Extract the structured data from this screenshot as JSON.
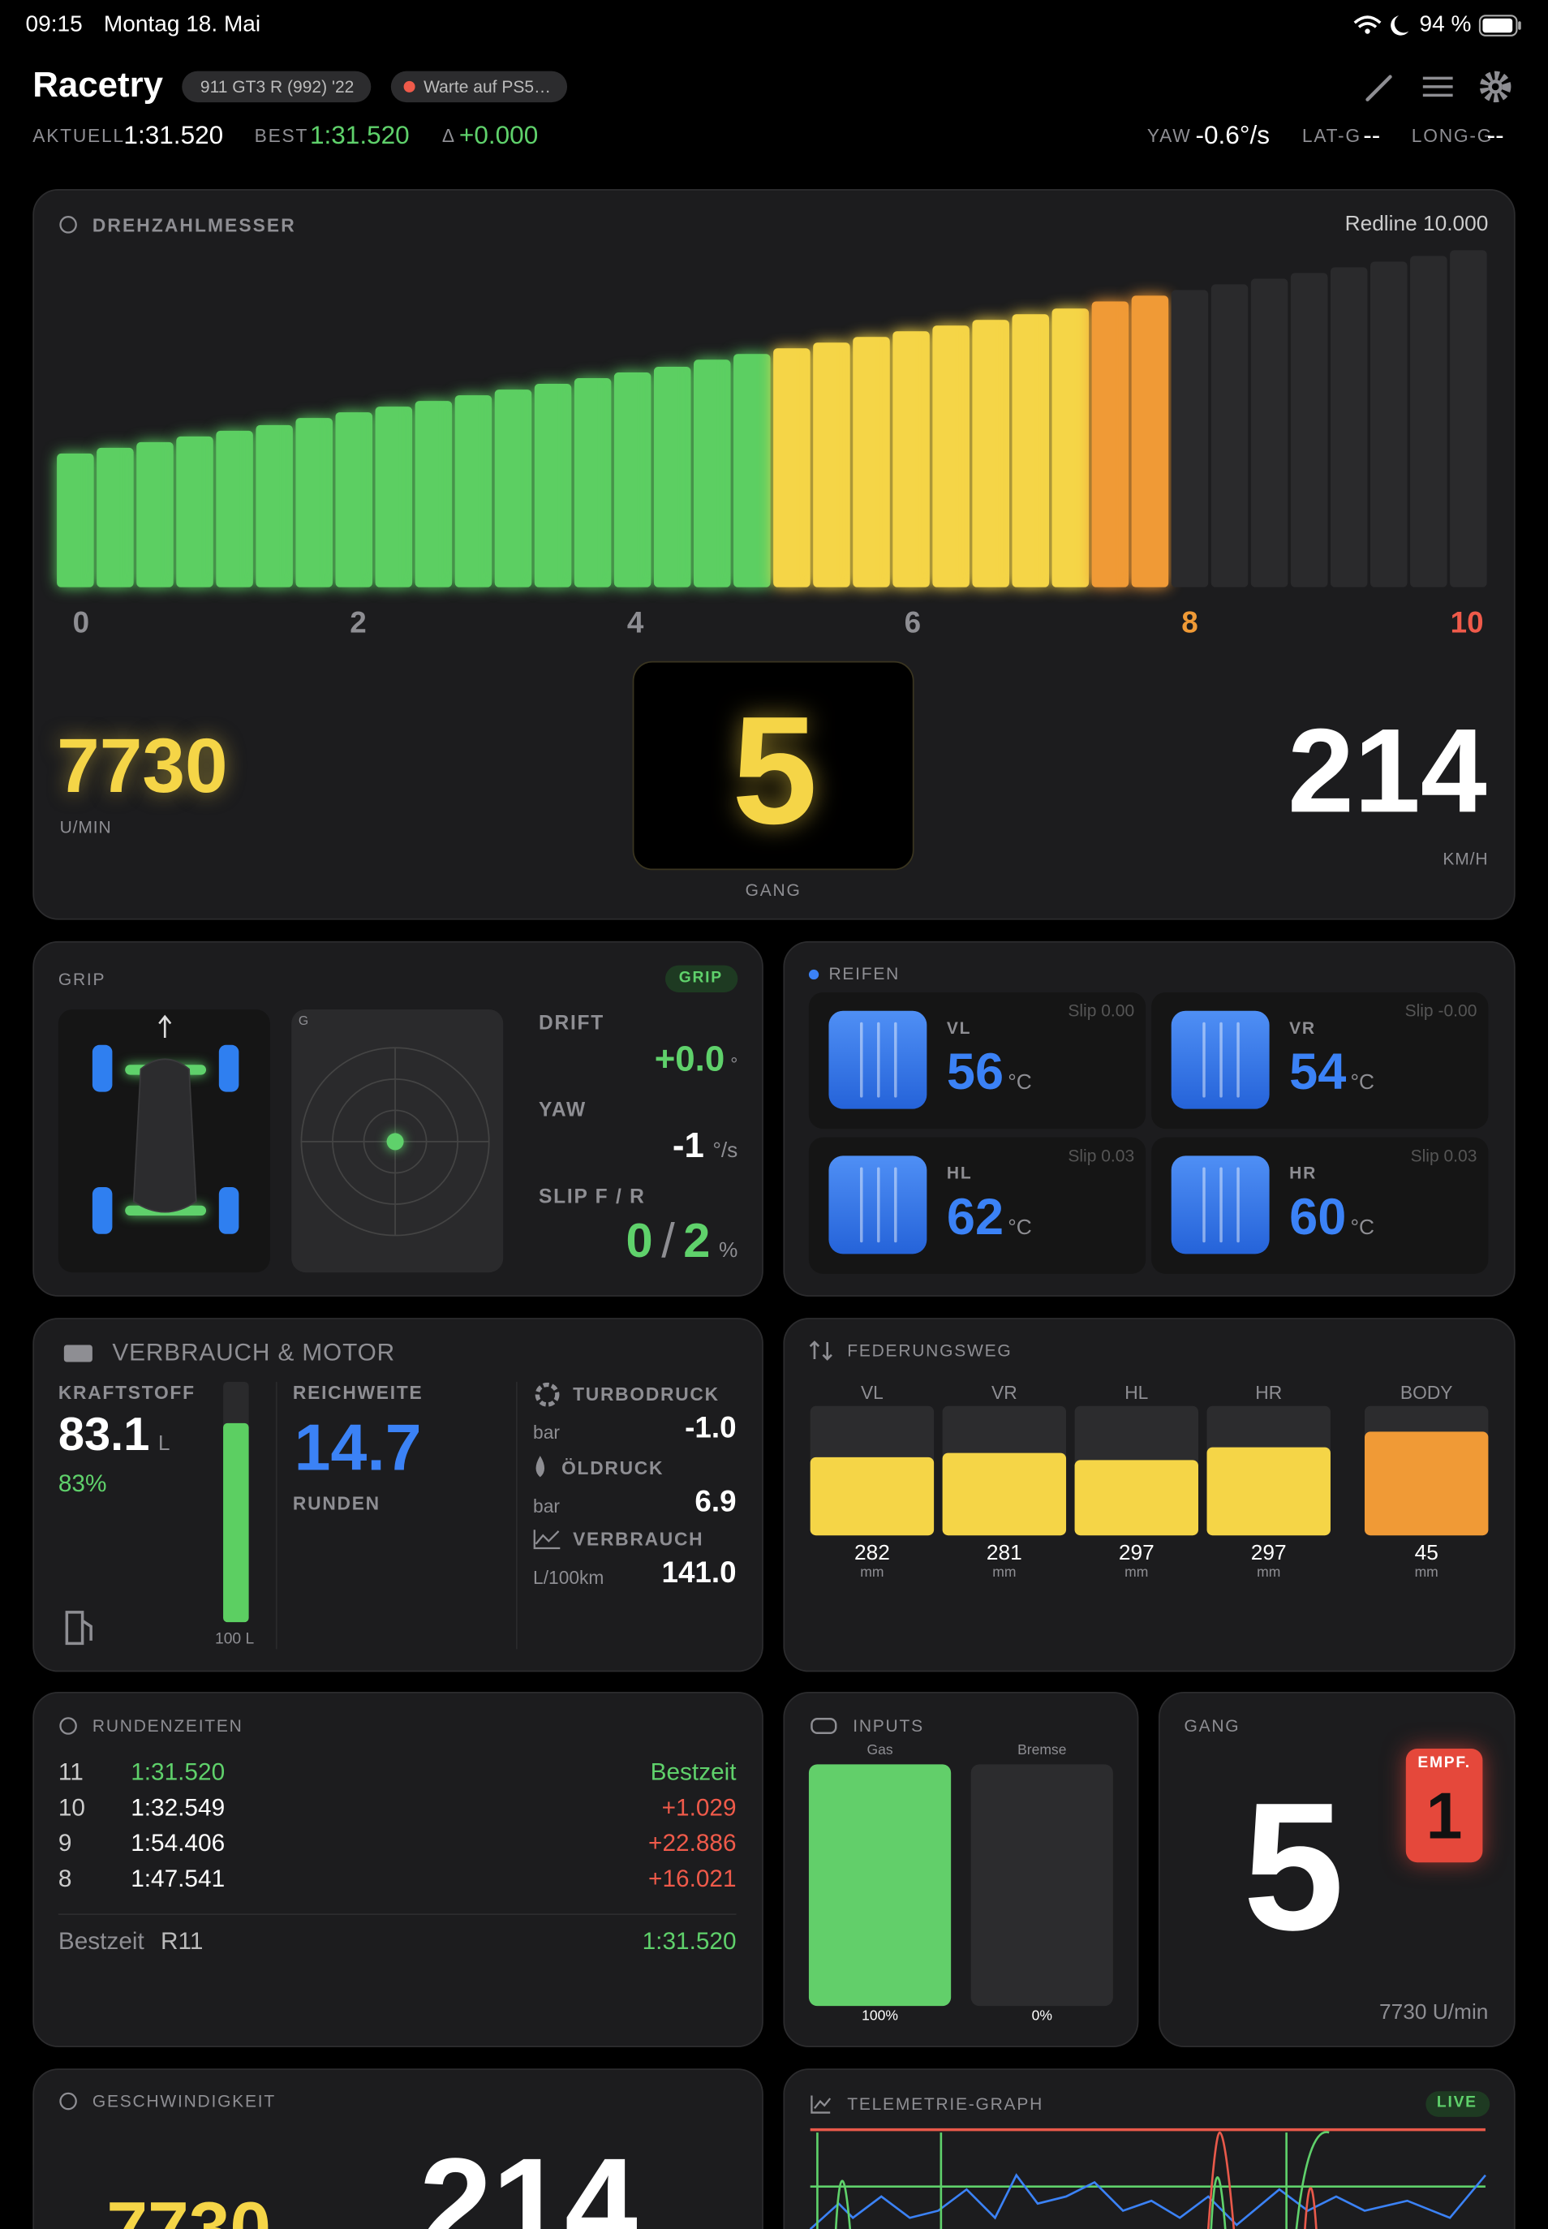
{
  "status": {
    "time": "09:15",
    "date": "Montag 18. Mai",
    "battery": "94 %"
  },
  "header": {
    "title": "Racetry",
    "car": "911 GT3 R (992) '22",
    "connection": "Warte auf PS5…",
    "current_label": "AKTUELL",
    "current": "1:31.520",
    "best_label": "BEST",
    "best": "1:31.520",
    "delta_label": "Δ",
    "delta": "+0.000",
    "yaw_label": "YAW",
    "yaw": "-0.6°/s",
    "lat_g_label": "LAT-G",
    "lat_g": "--",
    "long_g_label": "LONG-G",
    "long_g": "--"
  },
  "tachometer": {
    "title": "DREHZAHLMESSER",
    "redline": "Redline 10.000",
    "scale": [
      "0",
      "2",
      "4",
      "6",
      "8",
      "10"
    ],
    "rpm": "7730",
    "rpm_unit": "U/MIN",
    "gear": "5",
    "gear_label": "GANG",
    "speed": "214",
    "speed_unit": "KM/H"
  },
  "grip": {
    "title": "GRIP",
    "badge": "GRIP",
    "g_label": "G",
    "drift_label": "DRIFT",
    "drift": "+0.0",
    "drift_unit": "°",
    "yaw_label": "YAW",
    "yaw": "-1",
    "yaw_unit": "°/s",
    "slip_label": "SLIP F / R",
    "slip_front": "0",
    "slip_separator": "/",
    "slip_rear": "2",
    "slip_unit": "%"
  },
  "tires": {
    "title": "REIFEN",
    "items": [
      {
        "position": "VL",
        "temperature": "56",
        "unit": "°C",
        "slip": "Slip 0.00"
      },
      {
        "position": "VR",
        "temperature": "54",
        "unit": "°C",
        "slip": "Slip -0.00"
      },
      {
        "position": "HL",
        "temperature": "62",
        "unit": "°C",
        "slip": "Slip 0.03"
      },
      {
        "position": "HR",
        "temperature": "60",
        "unit": "°C",
        "slip": "Slip 0.03"
      }
    ]
  },
  "motor": {
    "title": "VERBRAUCH & MOTOR",
    "fuel_label": "KRAFTSTOFF",
    "fuel": "83.1",
    "fuel_unit": "L",
    "fuel_percent": "83%",
    "tank": "100 L",
    "range_label": "REICHWEITE",
    "range": "14.7",
    "range_unit": "RUNDEN",
    "turbo_label": "TURBODRUCK",
    "turbo_unit": "bar",
    "turbo": "-1.0",
    "oil_label": "ÖLDRUCK",
    "oil_unit": "bar",
    "oil": "6.9",
    "consumption_label": "VERBRAUCH",
    "consumption_unit": "L/100km",
    "consumption": "141.0"
  },
  "suspension": {
    "title": "FEDERUNGSWEG",
    "items": [
      {
        "label": "VL",
        "value": "282",
        "unit": "mm"
      },
      {
        "label": "VR",
        "value": "281",
        "unit": "mm"
      },
      {
        "label": "HL",
        "value": "297",
        "unit": "mm"
      },
      {
        "label": "HR",
        "value": "297",
        "unit": "mm"
      },
      {
        "label": "BODY",
        "value": "45",
        "unit": "mm"
      }
    ]
  },
  "laps": {
    "title": "RUNDENZEITEN",
    "rows": [
      [
        "11",
        "1:31.520",
        "Bestzeit"
      ],
      [
        "10",
        "1:32.549",
        "+1.029"
      ],
      [
        "9",
        "1:54.406",
        "+22.886"
      ],
      [
        "8",
        "1:47.541",
        "+16.021"
      ]
    ],
    "best_label": "Bestzeit",
    "best_lap": "R11",
    "best_time": "1:31.520"
  },
  "inputs": {
    "title": "INPUTS",
    "gas_label": "Gas",
    "brake_label": "Bremse",
    "gas": "100%",
    "brake": "0%"
  },
  "gear_card": {
    "title": "GANG",
    "recommended_label": "EMPF.",
    "recommended": "1",
    "gear": "5",
    "rpm": "7730 U/min"
  },
  "speed_card": {
    "title": "GESCHWINDIGKEIT",
    "rpm": "7730",
    "speed": "214"
  },
  "telemetry": {
    "title": "TELEMETRIE-GRAPH",
    "badge": "LIVE"
  }
}
